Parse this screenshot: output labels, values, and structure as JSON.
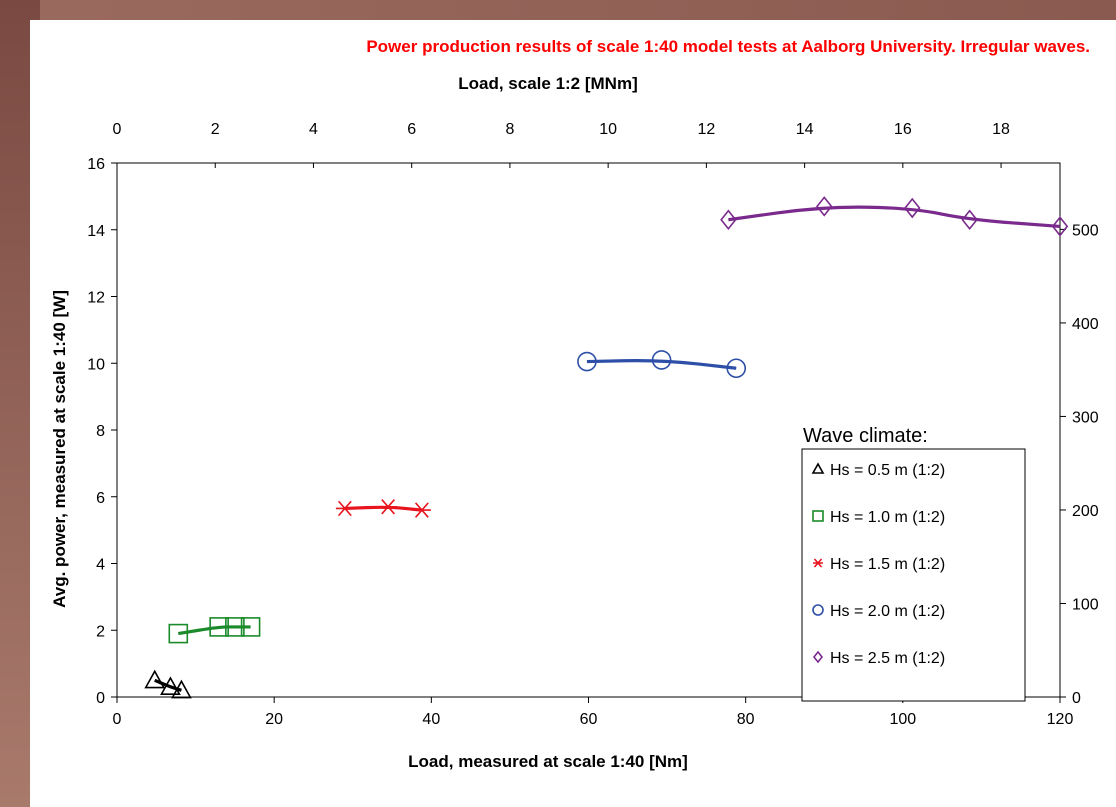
{
  "colors": {
    "title": "#ff0000",
    "hs05": "#000000",
    "hs10": "#1a8a2a",
    "hs15": "#e8141e",
    "hs20": "#2d4fa8",
    "hs25": "#7a2a8c"
  },
  "chart_data": {
    "type": "line",
    "title": "Power production results of scale 1:40 model tests at Aalborg University. Irregular waves.",
    "xlabel": "Load, measured at scale 1:40 [Nm]",
    "x2label": "Load, scale 1:2 [MNm]",
    "ylabel": "Avg. power, measured at scale 1:40 [W]",
    "xlim": [
      0,
      120
    ],
    "ylim": [
      0,
      16
    ],
    "x2lim": [
      0,
      19.2
    ],
    "y2lim": [
      0,
      571
    ],
    "xticks": [
      0,
      20,
      40,
      60,
      80,
      100,
      120
    ],
    "yticks": [
      0,
      2,
      4,
      6,
      8,
      10,
      12,
      14,
      16
    ],
    "x2ticks": [
      0,
      2,
      4,
      6,
      8,
      10,
      12,
      14,
      16,
      18
    ],
    "y2ticks": [
      0,
      100,
      200,
      300,
      400,
      500
    ],
    "grid": false,
    "legend_title": "Wave climate:",
    "legend_position": "right",
    "series": [
      {
        "name": "Hs = 0.5 m (1:2)",
        "marker": "triangle",
        "color": "#000000",
        "x": [
          4.8,
          6.8,
          8.2
        ],
        "y": [
          0.5,
          0.3,
          0.2
        ]
      },
      {
        "name": "Hs = 1.0 m (1:2)",
        "marker": "square",
        "color": "#1a8a2a",
        "x": [
          7.8,
          13.0,
          15.0,
          17.0
        ],
        "y": [
          1.9,
          2.1,
          2.1,
          2.1
        ]
      },
      {
        "name": "Hs = 1.5 m (1:2)",
        "marker": "star",
        "color": "#e8141e",
        "x": [
          29.0,
          34.5,
          38.8
        ],
        "y": [
          5.65,
          5.7,
          5.6
        ]
      },
      {
        "name": "Hs = 2.0 m (1:2)",
        "marker": "circle",
        "color": "#2d4fa8",
        "x": [
          59.8,
          69.3,
          78.8
        ],
        "y": [
          10.05,
          10.1,
          9.85
        ]
      },
      {
        "name": "Hs = 2.5 m (1:2)",
        "marker": "diamond",
        "color": "#7a2a8c",
        "x": [
          77.8,
          90.0,
          101.2,
          108.5,
          120.0
        ],
        "y": [
          14.3,
          14.7,
          14.65,
          14.3,
          14.1
        ]
      }
    ]
  }
}
